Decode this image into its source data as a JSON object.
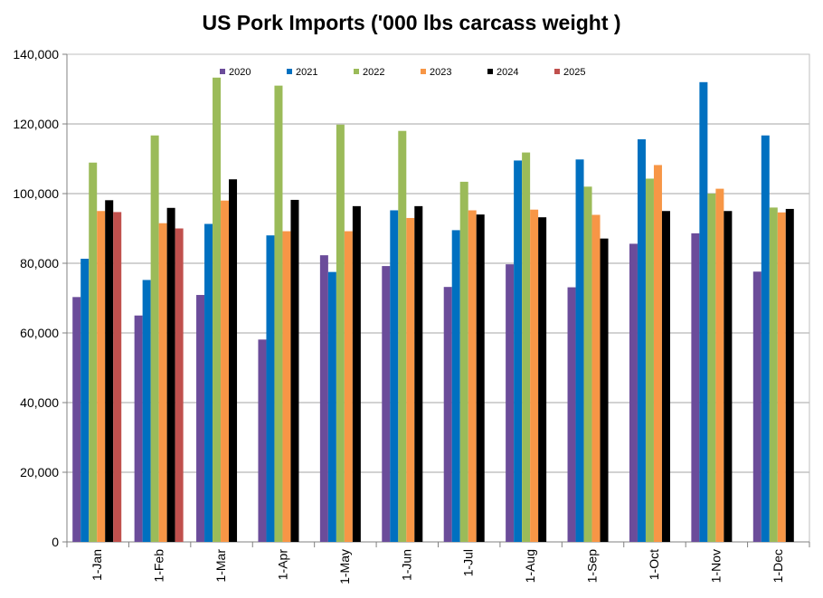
{
  "chart_data": {
    "type": "bar",
    "title": "US Pork Imports ('000 lbs carcass weight )",
    "categories": [
      "1-Jan",
      "1-Feb",
      "1-Mar",
      "1-Apr",
      "1-May",
      "1-Jun",
      "1-Jul",
      "1-Aug",
      "1-Sep",
      "1-Oct",
      "1-Nov",
      "1-Dec"
    ],
    "ylim": [
      0,
      140000
    ],
    "yticks": [
      0,
      20000,
      40000,
      60000,
      80000,
      100000,
      120000,
      140000
    ],
    "ytick_labels": [
      "0",
      "20,000",
      "40,000",
      "60,000",
      "80,000",
      "100,000",
      "120,000",
      "140,000"
    ],
    "grid": true,
    "legend_position": "top",
    "series": [
      {
        "name": "2020",
        "color": "#6B4C9A",
        "values": [
          70300,
          65000,
          70900,
          58100,
          82300,
          79200,
          73200,
          79700,
          73100,
          85600,
          88600,
          77600
        ]
      },
      {
        "name": "2021",
        "color": "#0070C0",
        "values": [
          81300,
          75200,
          91300,
          88000,
          77500,
          95200,
          89500,
          109500,
          109800,
          115600,
          132000,
          116700
        ]
      },
      {
        "name": "2022",
        "color": "#9BBB59",
        "values": [
          108900,
          116700,
          133300,
          131000,
          119800,
          118000,
          103400,
          111800,
          102000,
          104300,
          100000,
          96000
        ]
      },
      {
        "name": "2023",
        "color": "#F79646",
        "values": [
          95000,
          91500,
          98000,
          89200,
          89200,
          93000,
          95200,
          95400,
          93900,
          108200,
          101400,
          94600
        ]
      },
      {
        "name": "2024",
        "color": "#000000",
        "values": [
          98100,
          95900,
          104100,
          98200,
          96400,
          96400,
          94000,
          93200,
          87100,
          95000,
          95000,
          95600
        ]
      },
      {
        "name": "2025",
        "color": "#C0504D",
        "values": [
          94700,
          90000,
          null,
          null,
          null,
          null,
          null,
          null,
          null,
          null,
          null,
          null
        ]
      }
    ]
  }
}
